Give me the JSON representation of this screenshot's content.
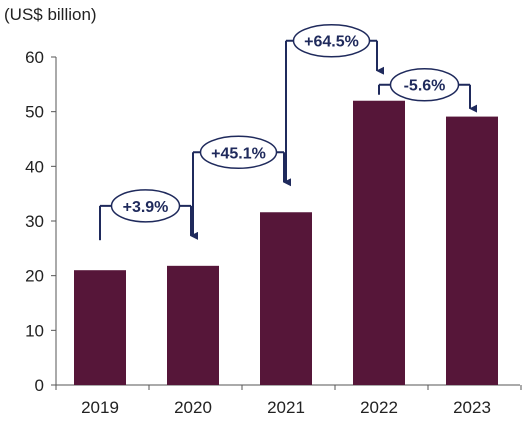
{
  "chart_data": {
    "type": "bar",
    "title": "",
    "unit_label": "(US$ billion)",
    "xlabel": "",
    "ylabel": "",
    "categories": [
      "2019",
      "2020",
      "2021",
      "2022",
      "2023"
    ],
    "values": [
      21,
      21.8,
      31.6,
      52,
      49.1
    ],
    "ylim": [
      0,
      60
    ],
    "yticks": [
      "0",
      "10",
      "20",
      "30",
      "40",
      "50",
      "60"
    ],
    "grid": false,
    "legend": "none",
    "bar_color": "#561639",
    "annotations": [
      {
        "from": "2019",
        "to": "2020",
        "text": "+3.9%"
      },
      {
        "from": "2020",
        "to": "2021",
        "text": "+45.1%"
      },
      {
        "from": "2021",
        "to": "2022",
        "text": "+64.5%"
      },
      {
        "from": "2022",
        "to": "2023",
        "text": "-5.6%"
      }
    ],
    "annotation_color": "#1f2a5c"
  }
}
